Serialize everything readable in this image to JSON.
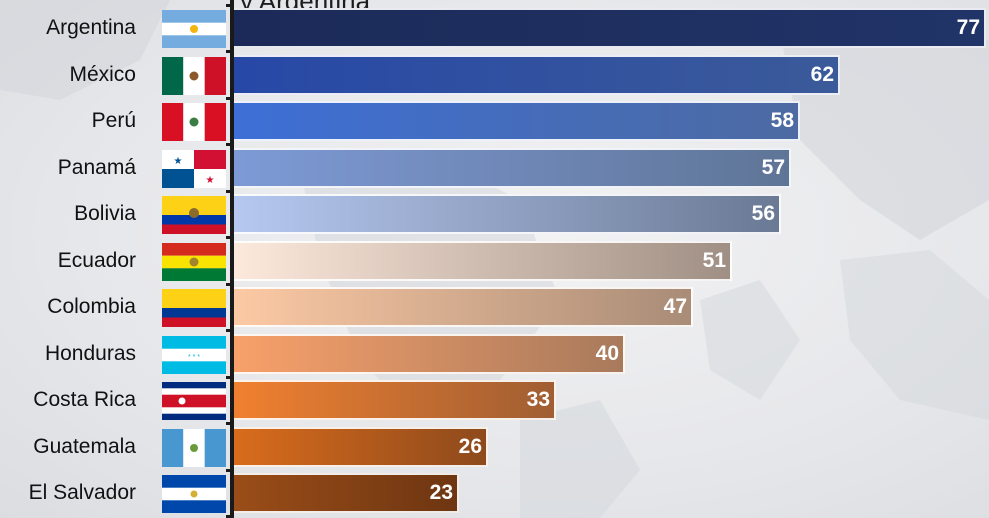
{
  "title": "y Argentina",
  "chart_data": {
    "type": "bar",
    "orientation": "horizontal",
    "categories": [
      "Argentina",
      "México",
      "Perú",
      "Panamá",
      "Bolivia",
      "Ecuador",
      "Colombia",
      "Honduras",
      "Costa Rica",
      "Guatemala",
      "El Salvador"
    ],
    "values": [
      77,
      62,
      58,
      57,
      56,
      51,
      47,
      40,
      33,
      26,
      23
    ],
    "xlim": [
      0,
      77
    ],
    "grid": false,
    "colors": [
      [
        "#1b2a58",
        "#213468"
      ],
      [
        "#2748a6",
        "#3b5a9a"
      ],
      [
        "#3d6fd6",
        "#4d6aa2"
      ],
      [
        "#7e9ad6",
        "#5f7597"
      ],
      [
        "#b6c8f0",
        "#6a7a95"
      ],
      [
        "#fde9dc",
        "#a08f84"
      ],
      [
        "#fcc9a4",
        "#a98c77"
      ],
      [
        "#f8a06a",
        "#a87a5c"
      ],
      [
        "#f08030",
        "#a05e32"
      ],
      [
        "#d96c1c",
        "#8e4a1c"
      ],
      [
        "#9a4d18",
        "#6e3612"
      ]
    ]
  },
  "flags": [
    "argentina-flag",
    "mexico-flag",
    "peru-flag",
    "panama-flag",
    "bolivia-flag",
    "ecuador-flag",
    "colombia-flag",
    "honduras-flag",
    "costa-rica-flag",
    "guatemala-flag",
    "el-salvador-flag"
  ]
}
